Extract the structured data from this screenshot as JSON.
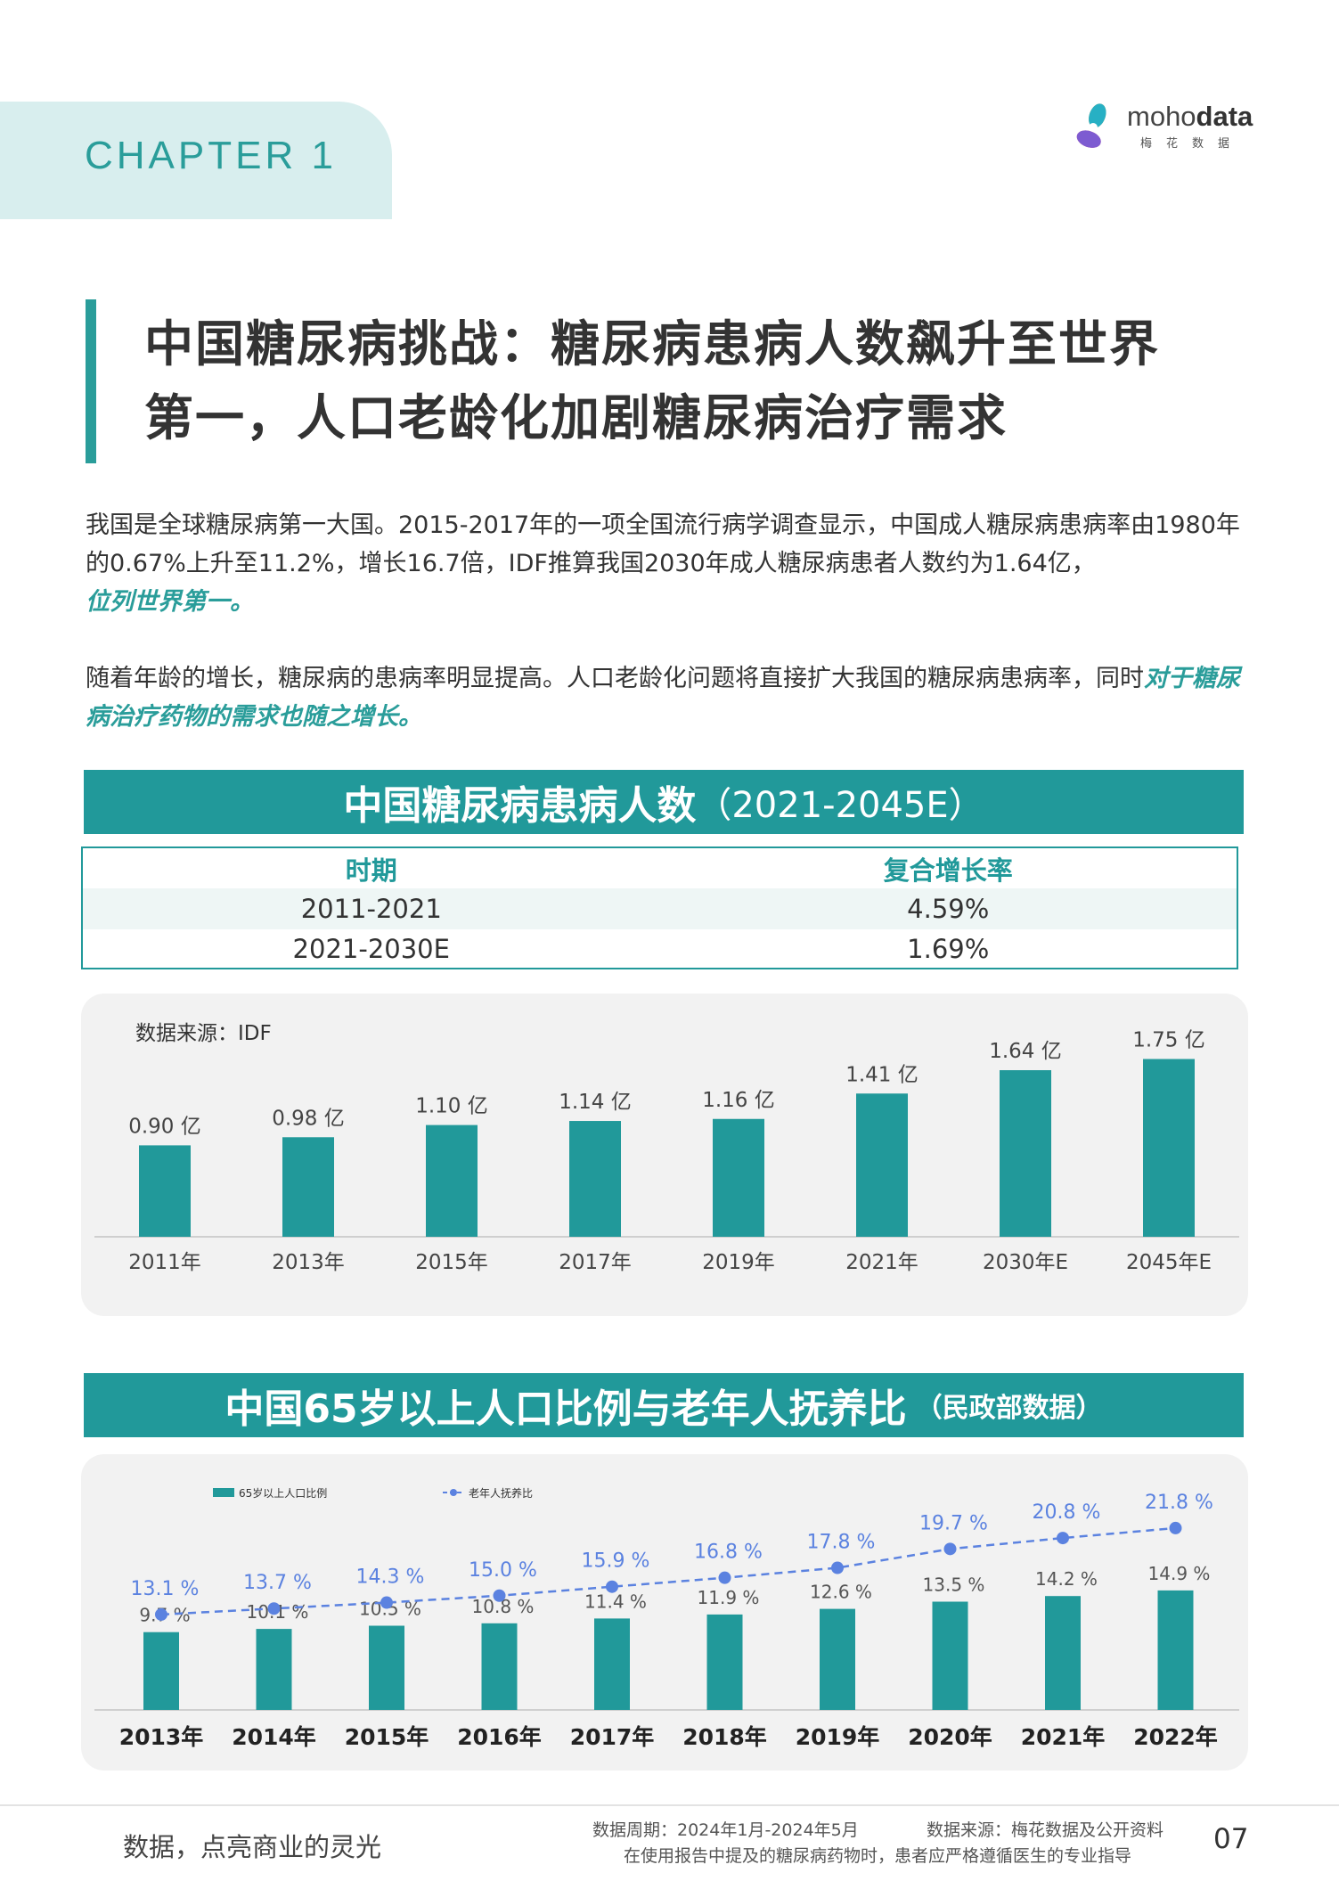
{
  "header": {
    "chapter": "CHAPTER  1",
    "logo": {
      "brand_light": "moho",
      "brand_bold": "data",
      "sub": "梅花数据"
    }
  },
  "headline": {
    "line1": "中国糖尿病挑战：糖尿病患病人数飙升至世界",
    "line2": "第一，人口老龄化加剧糖尿病治疗需求"
  },
  "paragraphs": {
    "p1_text": "我国是全球糖尿病第一大国。2015-2017年的一项全国流行病学调查显示，中国成人糖尿病患病率由1980年的0.67%上升至11.2%，增长16.7倍，IDF推算我国2030年成人糖尿病患者人数约为1.64亿，",
    "p1_highlight": "位列世界第一。",
    "p2_text": "随着年龄的增长，糖尿病的患病率明显提高。人口老龄化问题将直接扩大我国的糖尿病患病率，同时",
    "p2_highlight": "对于糖尿病治疗药物的需求也随之增长。"
  },
  "section1": {
    "title_main": "中国糖尿病患病人数",
    "title_sub": "（2021-2045E）",
    "table": {
      "headers": [
        "时期",
        "复合增长率"
      ],
      "rows": [
        [
          "2011-2021",
          "4.59%"
        ],
        [
          "2021-2030E",
          "1.69%"
        ]
      ]
    },
    "source_note": "数据来源：IDF"
  },
  "section2": {
    "title_main": "中国65岁以上人口比例与老年人抚养比",
    "title_sub": "（民政部数据）"
  },
  "footer": {
    "slogan": "数据，点亮商业的灵光",
    "period": "数据周期：2024年1月-2024年5月",
    "source": "数据来源：梅花数据及公开资料",
    "disclaimer": "在使用报告中提及的糖尿病药物时，患者应严格遵循医生的专业指导",
    "page": "07"
  },
  "colors": {
    "teal": "#21999a",
    "teal_light_bg": "#d8eeee",
    "line_blue": "#5b82e0",
    "panel_bg": "#f2f2f2"
  },
  "chart_data": [
    {
      "type": "bar",
      "categories": [
        "2011年",
        "2013年",
        "2015年",
        "2017年",
        "2019年",
        "2021年",
        "2030年E",
        "2045年E"
      ],
      "values": [
        0.9,
        0.98,
        1.1,
        1.14,
        1.16,
        1.41,
        1.64,
        1.75
      ],
      "labels": [
        "0.90 亿",
        "0.98 亿",
        "1.10 亿",
        "1.14 亿",
        "1.16 亿",
        "1.41 亿",
        "1.64 亿",
        "1.75 亿"
      ],
      "title": "",
      "xlabel": "",
      "ylabel": "",
      "ylim": [
        0,
        2.0
      ],
      "grid": false,
      "colors": [
        "#21999a"
      ]
    },
    {
      "type": "bar",
      "categories": [
        "2013年",
        "2014年",
        "2015年",
        "2016年",
        "2017年",
        "2018年",
        "2019年",
        "2020年",
        "2021年",
        "2022年"
      ],
      "series": [
        {
          "name": "65岁以上人口比例",
          "type": "bar",
          "values": [
            9.7,
            10.1,
            10.5,
            10.8,
            11.4,
            11.9,
            12.6,
            13.5,
            14.2,
            14.9
          ],
          "labels": [
            "9.7 %",
            "10.1 %",
            "10.5 %",
            "10.8 %",
            "11.4 %",
            "11.9 %",
            "12.6 %",
            "13.5 %",
            "14.2 %",
            "14.9 %"
          ]
        },
        {
          "name": "老年人抚养比",
          "type": "line",
          "values": [
            13.1,
            13.7,
            14.3,
            15.0,
            15.9,
            16.8,
            17.8,
            19.7,
            20.8,
            21.8
          ],
          "labels": [
            "13.1 %",
            "13.7 %",
            "14.3 %",
            "15.0 %",
            "15.9 %",
            "16.8 %",
            "17.8 %",
            "19.7 %",
            "20.8 %",
            "21.8 %"
          ]
        }
      ],
      "legend": "top-left",
      "grid": false,
      "colors": [
        "#21999a",
        "#5b82e0"
      ]
    }
  ]
}
